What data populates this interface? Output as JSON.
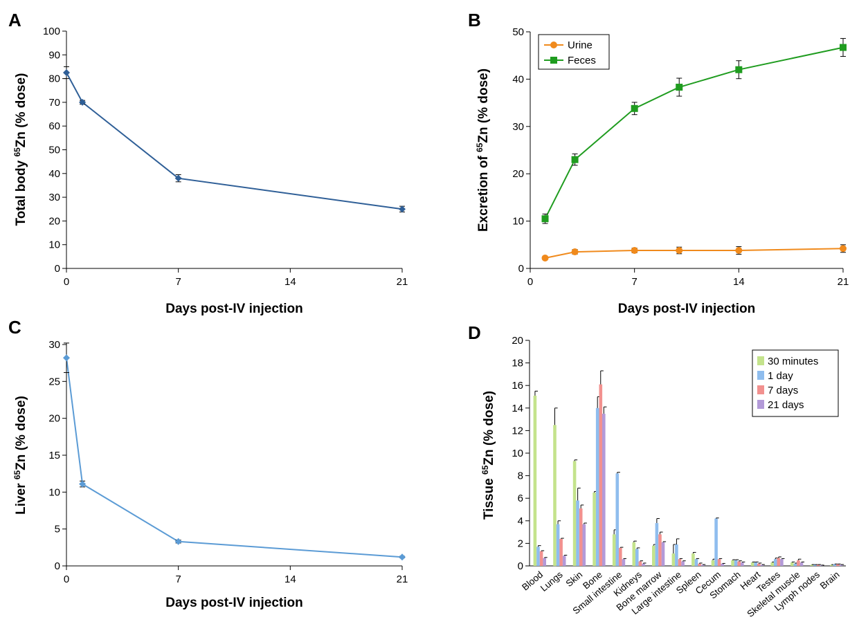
{
  "chart_data": [
    {
      "panel": "A",
      "type": "line",
      "ylabel_pre": "Total body ",
      "ylabel_sup": "65",
      "ylabel_post": "Zn (% dose)",
      "xlabel": "Days post-IV injection",
      "xlim": [
        0,
        21
      ],
      "ylim": [
        0,
        100
      ],
      "xticks": [
        0,
        7,
        14,
        21
      ],
      "yticks": [
        0,
        10,
        20,
        30,
        40,
        50,
        60,
        70,
        80,
        90,
        100
      ],
      "series": [
        {
          "color": "#2f5f97",
          "x": [
            0,
            1,
            7,
            21
          ],
          "y": [
            82.5,
            70,
            38,
            25
          ],
          "err": [
            2.5,
            0.8,
            1.5,
            1.2
          ]
        }
      ]
    },
    {
      "panel": "B",
      "type": "line",
      "ylabel_pre": "Excretion of ",
      "ylabel_sup": "65",
      "ylabel_post": "Zn (% dose)",
      "xlabel": "Days post-IV injection",
      "xlim": [
        0,
        21
      ],
      "ylim": [
        0,
        50
      ],
      "xticks": [
        0,
        7,
        14,
        21
      ],
      "yticks": [
        0,
        10,
        20,
        30,
        40,
        50
      ],
      "legend": "top-left",
      "series": [
        {
          "name": "Urine",
          "color": "#f08a1c",
          "marker": "circle",
          "x": [
            1,
            3,
            7,
            10,
            14,
            21
          ],
          "y": [
            2.2,
            3.5,
            3.8,
            3.8,
            3.8,
            4.2
          ],
          "err": [
            0.3,
            0.5,
            0.5,
            0.7,
            0.8,
            0.8
          ]
        },
        {
          "name": "Feces",
          "color": "#1f9c1f",
          "marker": "square",
          "x": [
            1,
            3,
            7,
            10,
            14,
            21
          ],
          "y": [
            10.5,
            23,
            33.8,
            38.3,
            42,
            46.7
          ],
          "err": [
            1.0,
            1.2,
            1.3,
            1.9,
            1.9,
            1.9
          ]
        }
      ]
    },
    {
      "panel": "C",
      "type": "line",
      "ylabel_pre": "Liver ",
      "ylabel_sup": "65",
      "ylabel_post": "Zn (% dose)",
      "xlabel": "Days post-IV injection",
      "xlim": [
        0,
        21
      ],
      "ylim": [
        0,
        30
      ],
      "xticks": [
        0,
        7,
        14,
        21
      ],
      "yticks": [
        0,
        5,
        10,
        15,
        20,
        25,
        30
      ],
      "series": [
        {
          "color": "#5b9bd5",
          "x": [
            0,
            1,
            7,
            21
          ],
          "y": [
            28.2,
            11.1,
            3.3,
            1.2
          ],
          "err": [
            2.0,
            0.4,
            0.2,
            0.1
          ]
        }
      ]
    },
    {
      "panel": "D",
      "type": "bar",
      "ylabel_pre": "Tissue ",
      "ylabel_sup": "65",
      "ylabel_post": "Zn (% dose)",
      "ylim": [
        0,
        20
      ],
      "yticks": [
        0,
        2,
        4,
        6,
        8,
        10,
        12,
        14,
        16,
        18,
        20
      ],
      "legend": "top-right",
      "categories": [
        "Blood",
        "Lungs",
        "Skin",
        "Bone",
        "Small intestine",
        "Kidneys",
        "Bone marrow",
        "Large intestine",
        "Spleen",
        "Cecum",
        "Stomach",
        "Heart",
        "Testes",
        "Skeletal muscle",
        "Lymph nodes",
        "Brain"
      ],
      "series": [
        {
          "name": "30 minutes",
          "color": "#c4e38c",
          "values": [
            15.1,
            12.5,
            9.3,
            6.5,
            2.8,
            2.1,
            1.8,
            1.1,
            1.1,
            0.5,
            0.5,
            0.3,
            0.3,
            0.3,
            0.1,
            0.1
          ],
          "err": [
            0.4,
            1.5,
            0.1,
            0.1,
            0.4,
            0.1,
            0.1,
            0.8,
            0.1,
            0.1,
            0.05,
            0.05,
            0.05,
            0.05,
            0.02,
            0.02
          ]
        },
        {
          "name": "1 day",
          "color": "#8fbdee",
          "values": [
            1.7,
            3.7,
            5.8,
            14.0,
            8.2,
            1.5,
            3.8,
            1.9,
            0.6,
            4.2,
            0.5,
            0.3,
            0.6,
            0.2,
            0.1,
            0.15
          ],
          "err": [
            0.1,
            0.3,
            1.1,
            1.0,
            0.1,
            0.1,
            0.4,
            0.5,
            0.05,
            0.05,
            0.05,
            0.05,
            0.1,
            0.05,
            0.02,
            0.02
          ]
        },
        {
          "name": "7 days",
          "color": "#f2918f",
          "values": [
            1.3,
            2.4,
            5.1,
            16.1,
            1.6,
            0.4,
            2.8,
            0.6,
            0.2,
            0.6,
            0.4,
            0.2,
            0.7,
            0.5,
            0.1,
            0.15
          ],
          "err": [
            0.05,
            0.05,
            0.3,
            1.2,
            0.05,
            0.05,
            0.2,
            0.05,
            0.05,
            0.05,
            0.05,
            0.05,
            0.1,
            0.1,
            0.02,
            0.02
          ]
        },
        {
          "name": "21 days",
          "color": "#b39ad8",
          "values": [
            0.7,
            0.9,
            3.7,
            13.5,
            0.6,
            0.2,
            2.1,
            0.4,
            0.1,
            0.2,
            0.3,
            0.1,
            0.6,
            0.3,
            0.05,
            0.1
          ],
          "err": [
            0.05,
            0.05,
            0.1,
            0.6,
            0.05,
            0.05,
            0.05,
            0.05,
            0.02,
            0.02,
            0.05,
            0.02,
            0.05,
            0.05,
            0.02,
            0.02
          ]
        }
      ]
    }
  ]
}
